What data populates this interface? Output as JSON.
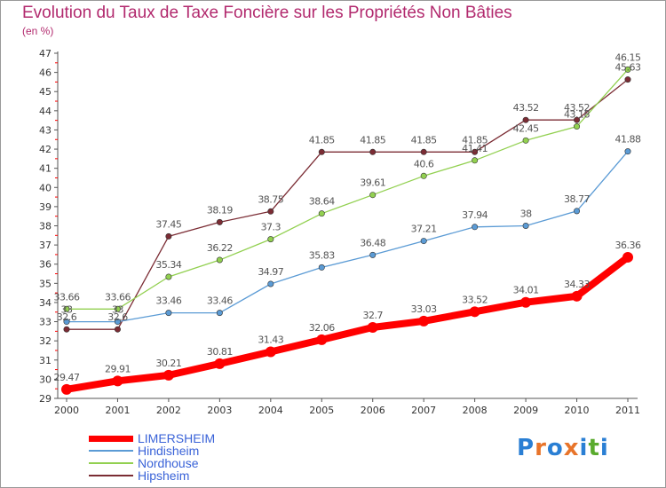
{
  "title": "Evolution du Taux de Taxe Foncière sur les Propriétés Non Bâties",
  "subtitle": "(en %)",
  "logo": {
    "letters": [
      "P",
      "r",
      "o",
      "x",
      "i",
      "t",
      "i"
    ],
    "colors": [
      "#2a7fd4",
      "#e8742a",
      "#2a7fd4",
      "#e8742a",
      "#2a7fd4",
      "#5aab2e",
      "#2a7fd4"
    ]
  },
  "chart_data": {
    "type": "line",
    "x": [
      "2000",
      "2001",
      "2002",
      "2003",
      "2004",
      "2005",
      "2006",
      "2007",
      "2008",
      "2009",
      "2010",
      "2011"
    ],
    "ylim": [
      29,
      47
    ],
    "yticks": [
      29,
      30,
      31,
      32,
      33,
      34,
      35,
      36,
      37,
      38,
      39,
      40,
      41,
      42,
      43,
      44,
      45,
      46,
      47
    ],
    "grid": false,
    "legend_position": "bottom-left",
    "series": [
      {
        "name": "LIMERSHEIM",
        "color": "#ff0000",
        "values": [
          29.47,
          29.91,
          30.21,
          30.81,
          31.43,
          32.06,
          32.7,
          33.03,
          33.52,
          34.01,
          34.33,
          36.36
        ],
        "labels": [
          "29.47",
          "29.91",
          "30.21",
          "30.81",
          "31.43",
          "32.06",
          "32.7",
          "33.03",
          "33.52",
          "34.01",
          "34.33",
          "36.36"
        ]
      },
      {
        "name": "Hindisheim",
        "color": "#5b9bd5",
        "values": [
          33,
          33,
          33.46,
          33.46,
          34.97,
          35.83,
          36.48,
          37.21,
          37.94,
          38,
          38.77,
          41.88
        ],
        "labels": [
          "33",
          "33",
          "33.46",
          "33.46",
          "34.97",
          "35.83",
          "36.48",
          "37.21",
          "37.94",
          "38",
          "38.77",
          "41.88"
        ]
      },
      {
        "name": "Nordhouse",
        "color": "#92d050",
        "values": [
          33.66,
          33.66,
          35.34,
          36.22,
          37.3,
          38.64,
          39.61,
          40.6,
          41.41,
          42.45,
          43.18,
          46.15
        ],
        "labels": [
          "33.66",
          "33.66",
          "35.34",
          "36.22",
          "37.3",
          "38.64",
          "39.61",
          "40.6",
          "41.41",
          "42.45",
          "43.18",
          "46.15"
        ]
      },
      {
        "name": "Hipsheim",
        "color": "#7b2c34",
        "values": [
          32.6,
          32.6,
          37.45,
          38.19,
          38.75,
          41.85,
          41.85,
          41.85,
          41.85,
          43.52,
          43.52,
          45.63
        ],
        "labels": [
          "32.6",
          "32.6",
          "37.45",
          "38.19",
          "38.75",
          "41.85",
          "41.85",
          "41.85",
          "41.85",
          "43.52",
          "43.52",
          "45.63"
        ]
      }
    ]
  }
}
